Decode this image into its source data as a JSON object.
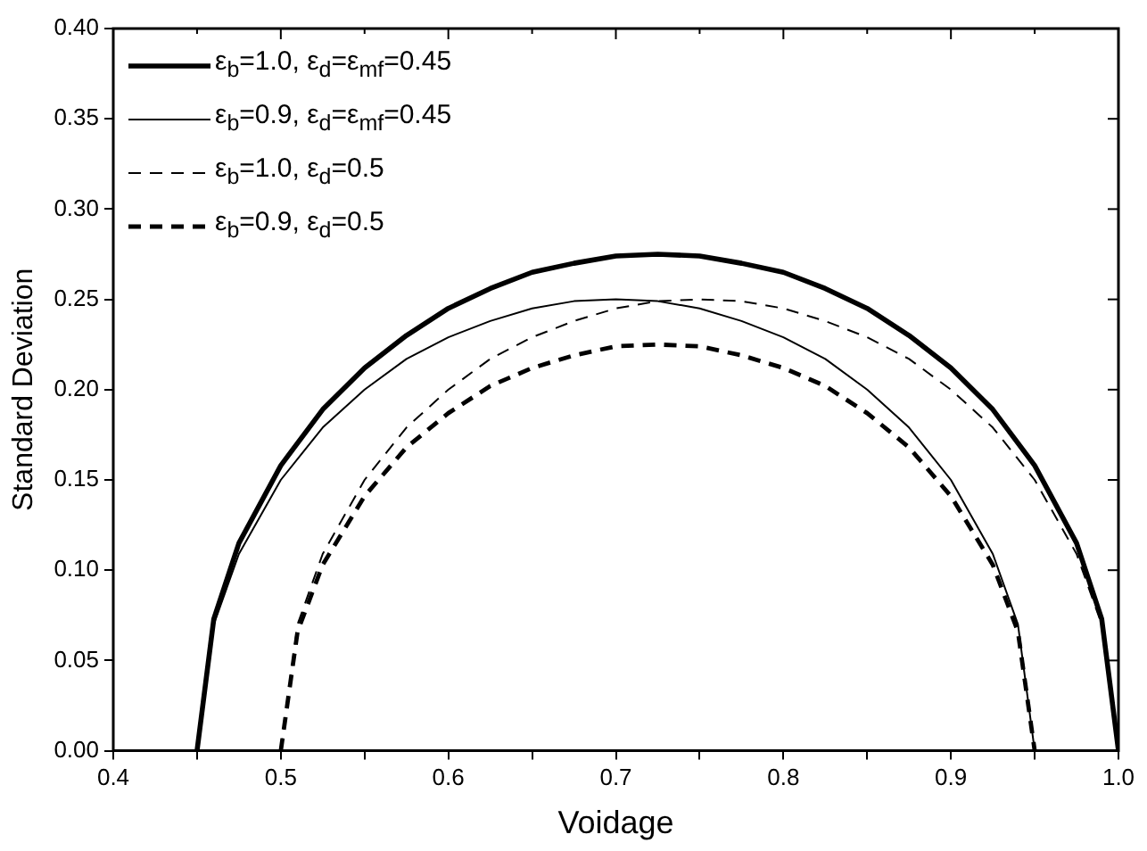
{
  "chart_data": {
    "type": "line",
    "xlabel": "Voidage",
    "ylabel": "Standard Deviation",
    "xlim": [
      0.4,
      1.0
    ],
    "ylim": [
      0,
      0.4
    ],
    "xticks": [
      {
        "value": 0.4,
        "label": "0.4"
      },
      {
        "value": 0.45,
        "label": null
      },
      {
        "value": 0.5,
        "label": "0.5"
      },
      {
        "value": 0.55,
        "label": null
      },
      {
        "value": 0.6,
        "label": "0.6"
      },
      {
        "value": 0.65,
        "label": null
      },
      {
        "value": 0.7,
        "label": "0.7"
      },
      {
        "value": 0.75,
        "label": null
      },
      {
        "value": 0.8,
        "label": "0.8"
      },
      {
        "value": 0.85,
        "label": null
      },
      {
        "value": 0.9,
        "label": "0.9"
      },
      {
        "value": 0.95,
        "label": null
      },
      {
        "value": 1.0,
        "label": "1.0"
      }
    ],
    "yticks": [
      {
        "value": 0,
        "label": "0.00"
      },
      {
        "value": 0.05,
        "label": "0.05"
      },
      {
        "value": 0.1,
        "label": "0.10"
      },
      {
        "value": 0.15,
        "label": "0.15"
      },
      {
        "value": 0.2,
        "label": "0.20"
      },
      {
        "value": 0.25,
        "label": "0.25"
      },
      {
        "value": 0.3,
        "label": "0.30"
      },
      {
        "value": 0.35,
        "label": "0.35"
      },
      {
        "value": 0.4,
        "label": "0.40"
      }
    ],
    "grid": false,
    "legend": "top left",
    "marker": "none",
    "series": [
      {
        "name": "ε$_{b}$=1.0, ε$_{d}$=ε$_{mf}$=0.45",
        "color": "#000000",
        "line_style": "solid",
        "x": [
          0.45,
          0.46,
          0.475,
          0.5,
          0.525,
          0.55,
          0.575,
          0.6,
          0.625,
          0.65,
          0.675,
          0.7,
          0.725,
          0.75,
          0.775,
          0.8,
          0.825,
          0.85,
          0.875,
          0.9,
          0.925,
          0.95,
          0.975,
          0.99,
          1.0
        ],
        "values": [
          0,
          0.073,
          0.115,
          0.158,
          0.189,
          0.212,
          0.23,
          0.245,
          0.256,
          0.265,
          0.27,
          0.274,
          0.275,
          0.274,
          0.27,
          0.265,
          0.256,
          0.245,
          0.23,
          0.212,
          0.189,
          0.158,
          0.115,
          0.073,
          0
        ]
      },
      {
        "name": "ε$_{b}$=0.9, ε$_{d}$=ε$_{mf}$=0.45",
        "color": "#000000",
        "line_style": "solid",
        "x": [
          0.45,
          0.46,
          0.475,
          0.5,
          0.525,
          0.55,
          0.575,
          0.6,
          0.625,
          0.65,
          0.675,
          0.7,
          0.725,
          0.75,
          0.775,
          0.8,
          0.825,
          0.85,
          0.875,
          0.9,
          0.925,
          0.94,
          0.95
        ],
        "values": [
          0,
          0.07,
          0.109,
          0.15,
          0.179,
          0.2,
          0.217,
          0.229,
          0.238,
          0.245,
          0.249,
          0.25,
          0.249,
          0.245,
          0.238,
          0.229,
          0.217,
          0.2,
          0.179,
          0.15,
          0.109,
          0.07,
          0
        ]
      },
      {
        "name": "ε$_{b}$=1.0, ε$_{d}$=0.5",
        "color": "#000000",
        "line_style": "dashed",
        "x": [
          0.5,
          0.51,
          0.525,
          0.55,
          0.575,
          0.6,
          0.625,
          0.65,
          0.675,
          0.7,
          0.725,
          0.75,
          0.775,
          0.8,
          0.825,
          0.85,
          0.875,
          0.9,
          0.925,
          0.95,
          0.975,
          0.99,
          1.0
        ],
        "values": [
          0,
          0.07,
          0.109,
          0.15,
          0.179,
          0.2,
          0.217,
          0.229,
          0.238,
          0.245,
          0.249,
          0.25,
          0.249,
          0.245,
          0.238,
          0.229,
          0.217,
          0.2,
          0.179,
          0.15,
          0.109,
          0.07,
          0
        ]
      },
      {
        "name": "ε$_{b}$=0.9, ε$_{d}$=0.5",
        "color": "#000000",
        "line_style": "dashed",
        "x": [
          0.5,
          0.51,
          0.525,
          0.55,
          0.575,
          0.6,
          0.625,
          0.65,
          0.675,
          0.7,
          0.725,
          0.75,
          0.775,
          0.8,
          0.825,
          0.85,
          0.875,
          0.9,
          0.925,
          0.94,
          0.95
        ],
        "values": [
          0,
          0.066,
          0.103,
          0.141,
          0.168,
          0.187,
          0.202,
          0.212,
          0.219,
          0.224,
          0.225,
          0.224,
          0.219,
          0.212,
          0.202,
          0.187,
          0.168,
          0.141,
          0.103,
          0.066,
          0
        ]
      }
    ]
  }
}
